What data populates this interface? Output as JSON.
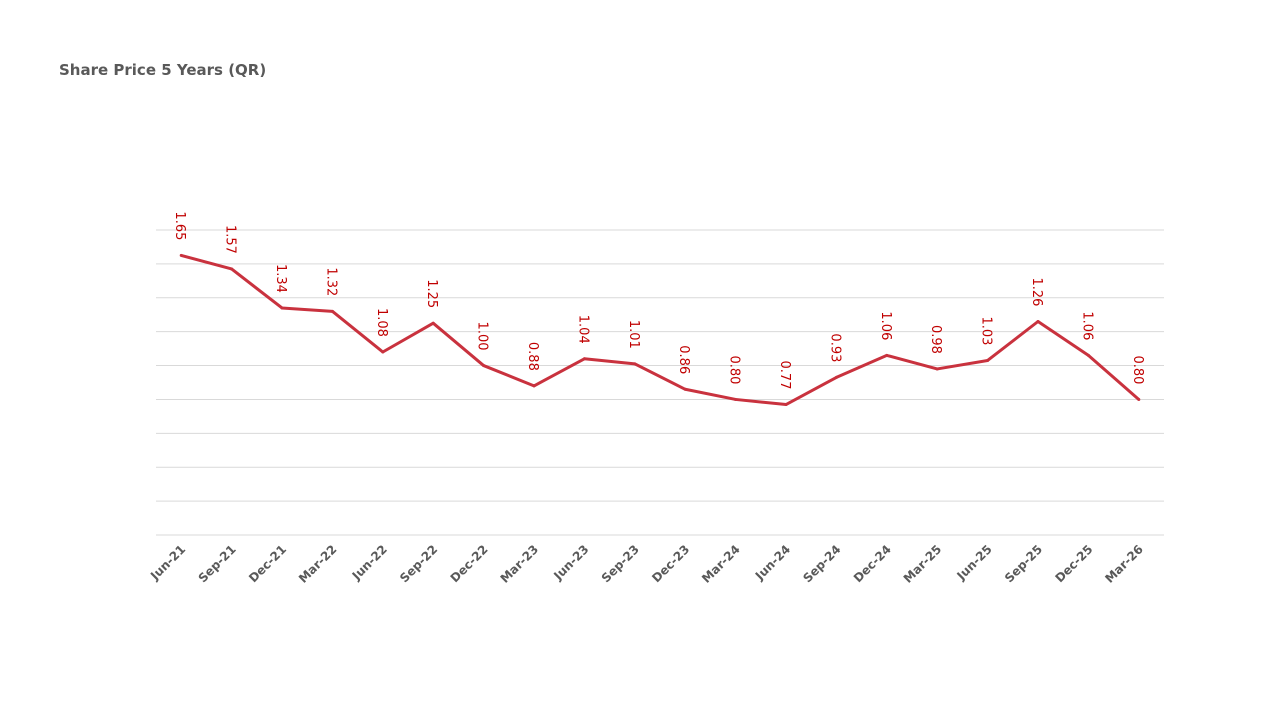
{
  "chart_data": {
    "type": "line",
    "title": "Share Price 5 Years (QR)",
    "xlabel": "",
    "ylabel": "",
    "ylim": [
      0,
      1.8
    ],
    "ytick_step": 0.2,
    "grid": true,
    "y_tick_labels_shown": false,
    "categories": [
      "Jun-21",
      "Sep-21",
      "Dec-21",
      "Mar-22",
      "Jun-22",
      "Sep-22",
      "Dec-22",
      "Mar-23",
      "Jun-23",
      "Sep-23",
      "Dec-23",
      "Mar-24",
      "Jun-24",
      "Sep-24",
      "Dec-24",
      "Mar-25",
      "Jun-25",
      "Sep-25",
      "Dec-25",
      "Mar-26"
    ],
    "series": [
      {
        "name": "Share Price",
        "color": "#c9323e",
        "values": [
          1.65,
          1.57,
          1.34,
          1.32,
          1.08,
          1.25,
          1.0,
          0.88,
          1.04,
          1.01,
          0.86,
          0.8,
          0.77,
          0.93,
          1.06,
          0.98,
          1.03,
          1.26,
          1.06,
          0.8
        ],
        "labels": [
          "1.65",
          "1.57",
          "1.34",
          "1.32",
          "1.08",
          "1.25",
          "1.00",
          "0.88",
          "1.04",
          "1.01",
          "0.86",
          "0.80",
          "0.77",
          "0.93",
          "1.06",
          "0.98",
          "1.03",
          "1.26",
          "1.06",
          "0.80"
        ]
      }
    ]
  }
}
